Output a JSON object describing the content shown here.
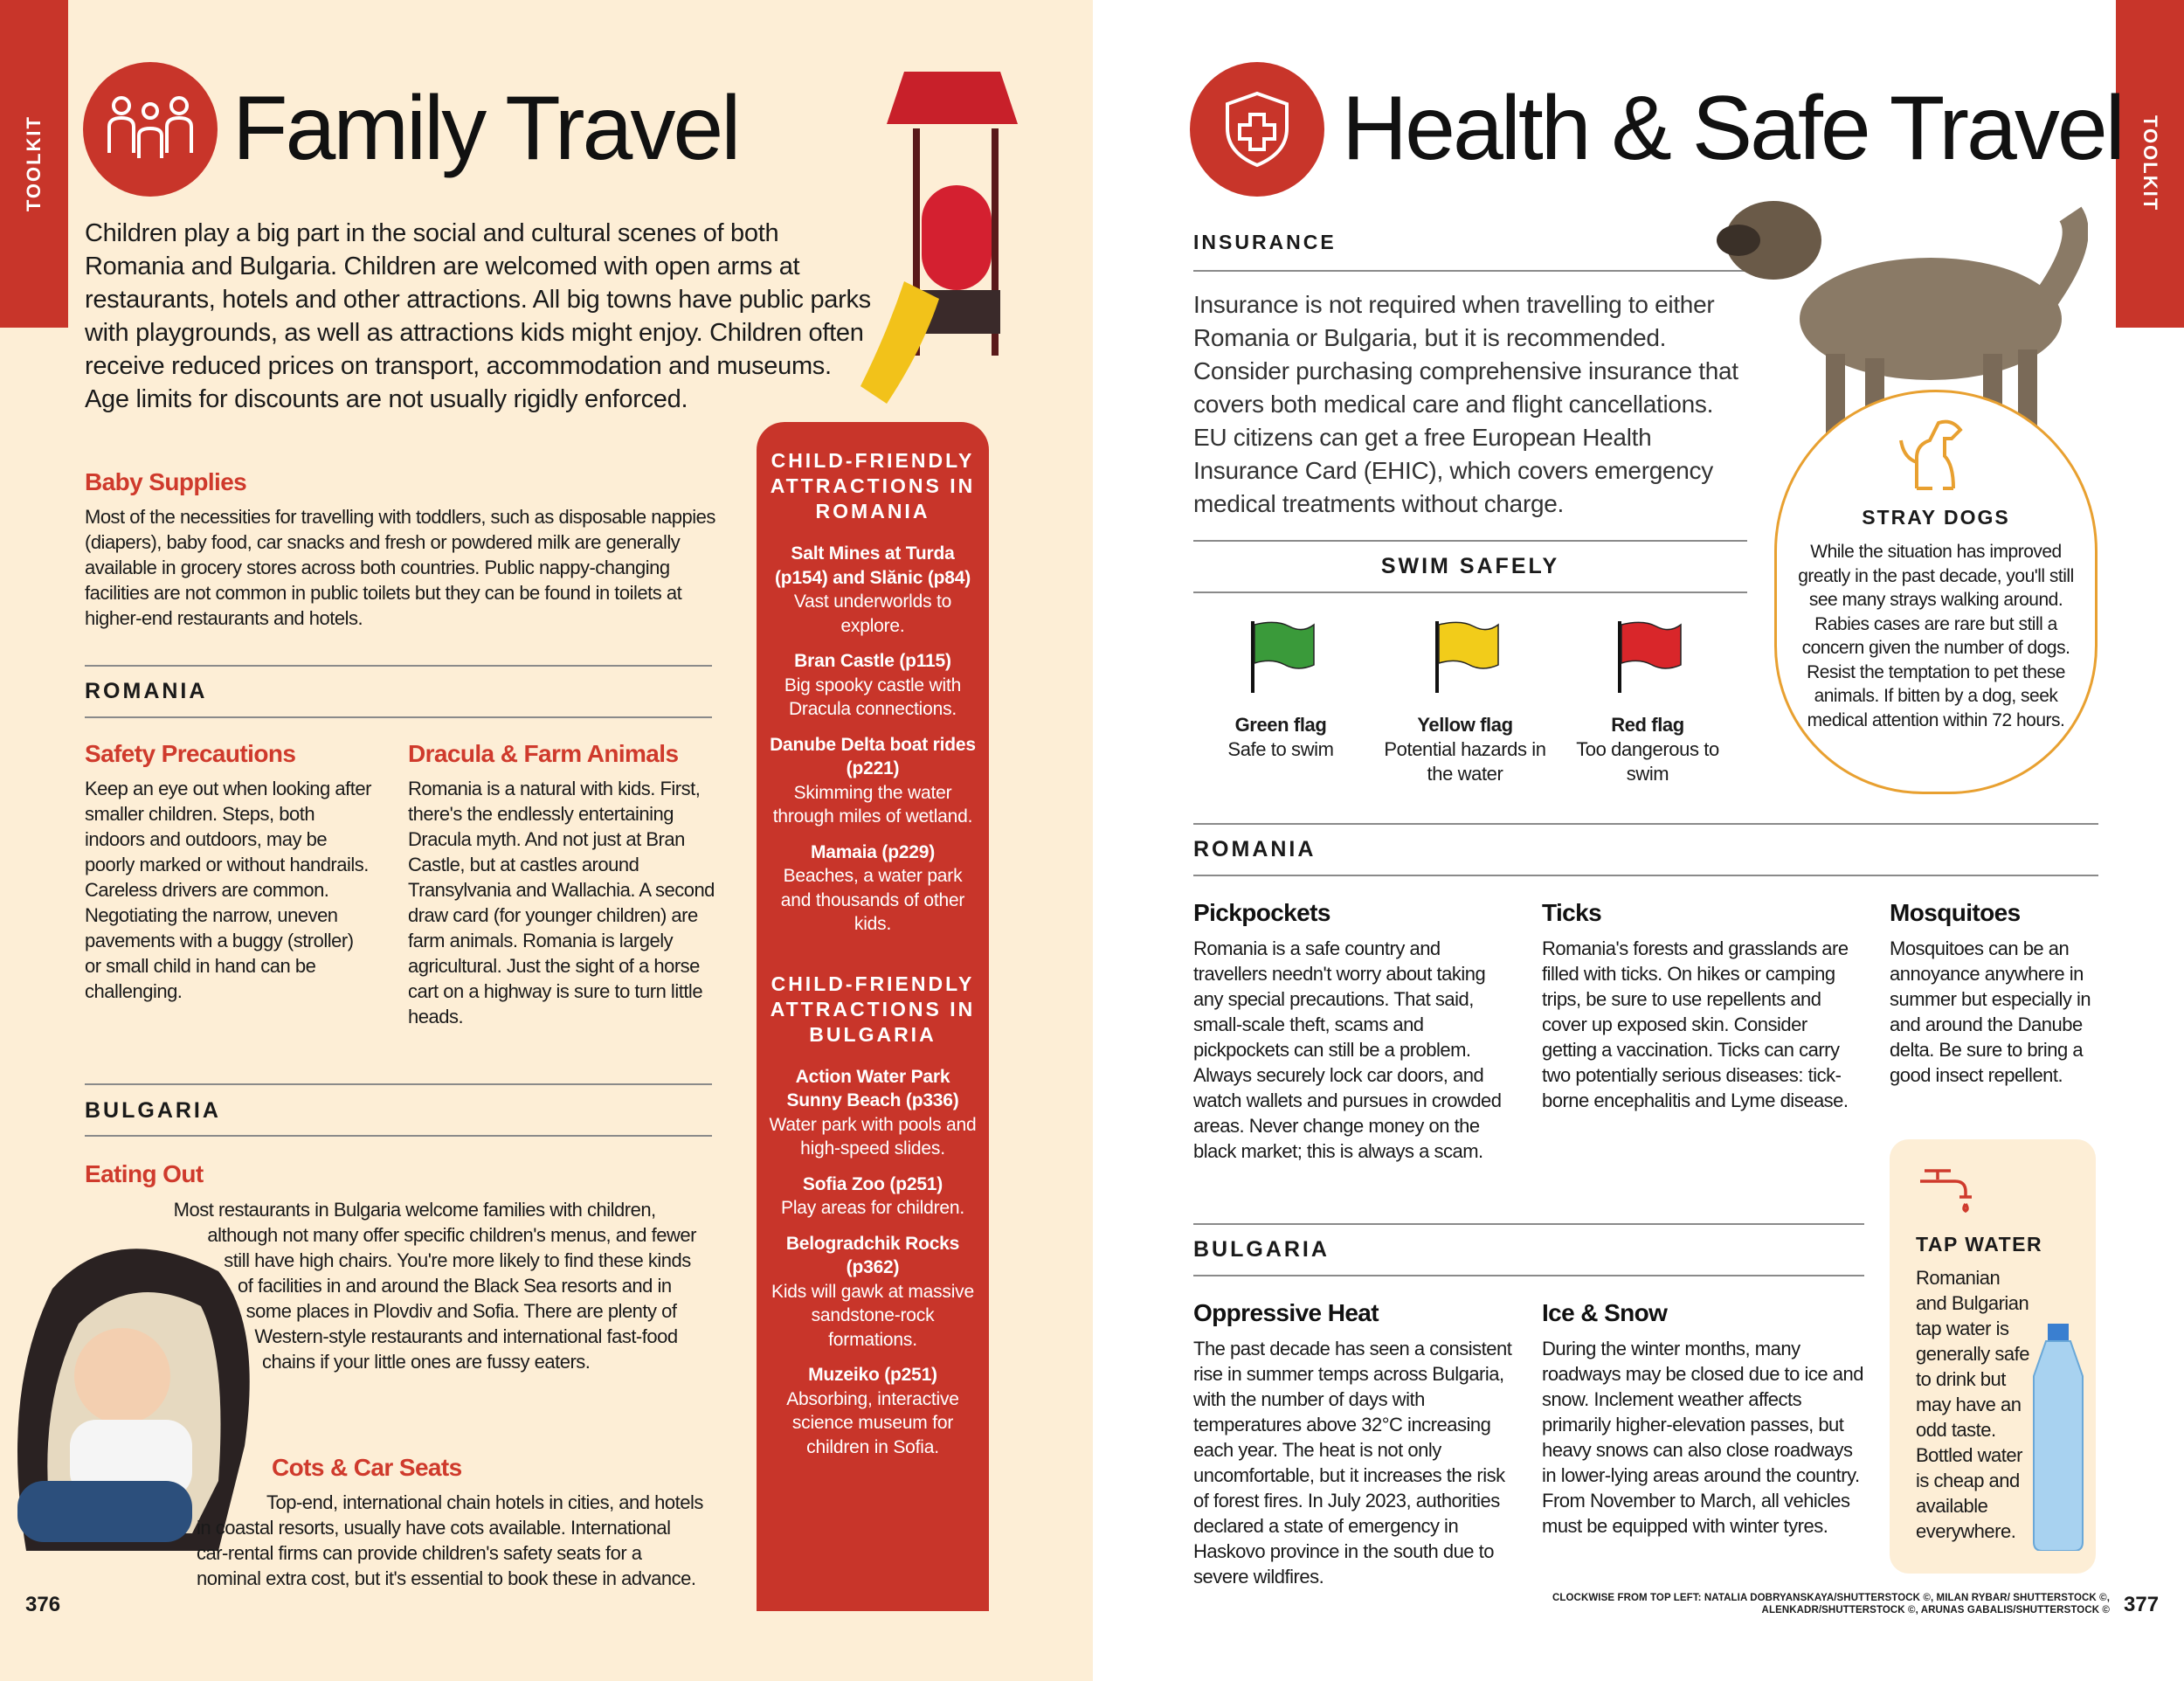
{
  "left": {
    "tab": "TOOLKIT",
    "icon": "family-icon",
    "title": "Family Travel",
    "intro": "Children play a big part in the social and cultural scenes of both Romania and Bulgaria. Children are welcomed with open arms at restaurants, hotels and other attractions. All big towns have public parks with playgrounds, as well as attractions kids might enjoy. Children often receive reduced prices on transport, accommodation and museums. Age limits for discounts are not usually rigidly enforced.",
    "baby": {
      "heading": "Baby Supplies",
      "text": "Most of the necessities for travelling with toddlers, such as disposable nappies (diapers), baby food, car snacks and fresh or powdered milk are generally available in grocery stores across both countries. Public nappy-changing facilities are not common in public toilets but they can be found in toilets at higher-end restaurants and hotels."
    },
    "romania": {
      "label": "ROMANIA",
      "safety": {
        "heading": "Safety Precautions",
        "text": "Keep an eye out when looking after smaller children. Steps, both indoors and outdoors, may be poorly marked or without handrails. Careless drivers are common. Negotiating the narrow, uneven pavements with a buggy (stroller) or small child in hand can be challenging."
      },
      "dracula": {
        "heading": "Dracula & Farm Animals",
        "text": "Romania is a natural with kids. First, there's the endlessly entertaining Dracula myth. And not just at Bran Castle, but at castles around Transylvania and Wallachia. A second draw card (for younger children) are farm animals. Romania is largely agricultural. Just the sight of a horse cart on a highway is sure to turn little heads."
      }
    },
    "bulgaria": {
      "label": "BULGARIA",
      "eating": {
        "heading": "Eating Out",
        "text": "Most restaurants in Bulgaria welcome families with children, although not many offer specific children's menus, and fewer still have high chairs. You're more likely to find these kinds of facilities in and around the Black Sea resorts and in some places in Plovdiv and Sofia. There are plenty of Western-style restaurants and international fast-food chains if your little ones are fussy eaters."
      },
      "cots": {
        "heading": "Cots & Car Seats",
        "text": "Top-end, international chain hotels in cities, and hotels in coastal resorts, usually have cots available. International car-rental firms can provide children's safety seats for a nominal extra cost, but it's essential to book these in advance."
      }
    },
    "sidebar": {
      "romania_heading": "CHILD-FRIENDLY ATTRACTIONS IN ROMANIA",
      "romania_items": [
        {
          "name": "Salt Mines at Turda (p154) and Slănic (p84)",
          "desc": "Vast underworlds to explore."
        },
        {
          "name": "Bran Castle (p115)",
          "desc": "Big spooky castle with Dracula connections."
        },
        {
          "name": "Danube Delta boat rides (p221)",
          "desc": "Skimming the water through miles of wetland."
        },
        {
          "name": "Mamaia (p229)",
          "desc": "Beaches, a water park and thousands of other kids."
        }
      ],
      "bulgaria_heading": "CHILD-FRIENDLY ATTRACTIONS IN BULGARIA",
      "bulgaria_items": [
        {
          "name": "Action Water Park Sunny Beach (p336)",
          "desc": "Water park with pools and high-speed slides."
        },
        {
          "name": "Sofia Zoo (p251)",
          "desc": "Play areas for children."
        },
        {
          "name": "Belogradchik Rocks (p362)",
          "desc": "Kids will gawk at massive sandstone-rock formations."
        },
        {
          "name": "Muzeiko (p251)",
          "desc": "Absorbing, interactive science museum for children in Sofia."
        }
      ]
    },
    "page_number": "376"
  },
  "right": {
    "tab": "TOOLKIT",
    "icon": "shield-cross-icon",
    "title": "Health & Safe Travel",
    "insurance": {
      "label": "INSURANCE",
      "text": "Insurance is not required when travelling to either Romania or Bulgaria, but it is recommended. Consider purchasing comprehensive insurance that covers both medical care and flight cancellations. EU citizens can get a free European Health Insurance Card (EHIC), which covers emergency medical treatments without charge."
    },
    "swim": {
      "label": "SWIM SAFELY",
      "flags": [
        {
          "name": "Green flag",
          "desc": "Safe to swim",
          "color": "#3a9a3a"
        },
        {
          "name": "Yellow flag",
          "desc": "Potential hazards in the water",
          "color": "#f2cc1a"
        },
        {
          "name": "Red flag",
          "desc": "Too dangerous to swim",
          "color": "#d9262a"
        }
      ]
    },
    "stray": {
      "icon": "dog-icon",
      "heading": "STRAY DOGS",
      "text": "While the situation has improved greatly in the past decade, you'll still see many strays walking around. Rabies cases are rare but still a concern given the number of dogs. Resist the temptation to pet these animals. If bitten by a dog, seek medical attention within 72 hours."
    },
    "romania": {
      "label": "ROMANIA",
      "cols": [
        {
          "heading": "Pickpockets",
          "text": "Romania is a safe country and travellers needn't worry about taking any special precautions. That said, small-scale theft, scams and pickpockets can still be a problem. Always securely lock car doors, and watch wallets and pursues in crowded areas. Never change money on the black market; this is always a scam."
        },
        {
          "heading": "Ticks",
          "text": "Romania's forests and grasslands are filled with ticks. On hikes or camping trips, be sure to use repellents and cover up exposed skin. Consider getting a vaccination. Ticks can carry two potentially serious diseases: tick-borne encephalitis and Lyme disease."
        },
        {
          "heading": "Mosquitoes",
          "text": "Mosquitoes can be an annoyance anywhere in summer but especially in and around the Danube delta. Be sure to bring a good insect repellent."
        }
      ]
    },
    "bulgaria": {
      "label": "BULGARIA",
      "cols": [
        {
          "heading": "Oppressive Heat",
          "text": "The past decade has seen a consistent rise in summer temps across Bulgaria, with the number of days with temperatures above 32°C increasing each year. The heat is not only uncomfortable, but it increases the risk of forest fires. In July 2023, authorities declared a state of emergency in Haskovo province in the south due to severe wildfires."
        },
        {
          "heading": "Ice & Snow",
          "text": "During the winter months, many roadways may be closed due to ice and snow. Inclement weather affects primarily higher-elevation passes, but heavy snows can also close roadways in lower-lying areas around the country. From November to March, all vehicles must be equipped with winter tyres."
        }
      ]
    },
    "tap": {
      "icon": "tap-icon",
      "heading": "TAP WATER",
      "text": "Romanian and Bulgarian tap water is generally safe to drink but may have an odd taste. Bottled water is cheap and available everywhere."
    },
    "credits": "CLOCKWISE FROM TOP LEFT: NATALIA DOBRYANSKAYA/SHUTTERSTOCK ©, MILAN RYBAR/ SHUTTERSTOCK ©, ALENKADR/SHUTTERSTOCK ©, ARUNAS GABALIS/SHUTTERSTOCK ©",
    "page_number": "377"
  },
  "colors": {
    "accent": "#c8352a",
    "cream": "#fdeed6",
    "orange": "#e8a030"
  }
}
